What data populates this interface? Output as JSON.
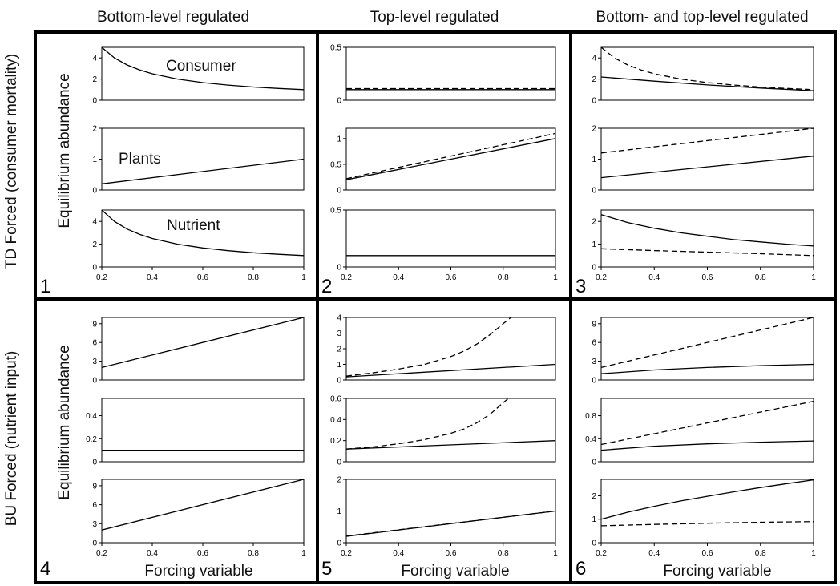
{
  "column_titles": [
    "Bottom-level regulated",
    "Top-level regulated",
    "Bottom- and top-level regulated"
  ],
  "row_titles": [
    "TD Forced (consumer mortality)",
    "BU Forced (nutrient input)"
  ],
  "ylabel": "Equilibrium abundance",
  "xlabel": "Forcing variable",
  "panel_numbers": [
    "1",
    "2",
    "3",
    "4",
    "5",
    "6"
  ],
  "annotations": {
    "consumer": "Consumer",
    "plants": "Plants",
    "nutrient": "Nutrient"
  },
  "chart_data": [
    {
      "type": "line",
      "panel": "1",
      "subplots": [
        {
          "ylim": [
            0,
            5
          ],
          "yticks": [
            0,
            2,
            4
          ],
          "xlim": [
            0.2,
            1
          ],
          "xticks": [],
          "annotation": "Consumer",
          "series": [
            {
              "style": "solid",
              "x": [
                0.2,
                0.25,
                0.3,
                0.35,
                0.4,
                0.5,
                0.6,
                0.7,
                0.8,
                0.9,
                1.0
              ],
              "y": [
                5.0,
                4.0,
                3.33,
                2.86,
                2.5,
                2.0,
                1.67,
                1.43,
                1.25,
                1.11,
                1.0
              ]
            }
          ]
        },
        {
          "ylim": [
            0,
            2
          ],
          "yticks": [
            0,
            1,
            2
          ],
          "xlim": [
            0.2,
            1
          ],
          "xticks": [],
          "annotation": "Plants",
          "series": [
            {
              "style": "solid",
              "x": [
                0.2,
                1.0
              ],
              "y": [
                0.2,
                1.0
              ]
            }
          ]
        },
        {
          "ylim": [
            0,
            5
          ],
          "yticks": [
            0,
            2,
            4
          ],
          "xlim": [
            0.2,
            1
          ],
          "xticks": [
            0.2,
            0.4,
            0.6,
            0.8,
            1
          ],
          "annotation": "Nutrient",
          "series": [
            {
              "style": "solid",
              "x": [
                0.2,
                0.25,
                0.3,
                0.35,
                0.4,
                0.5,
                0.6,
                0.7,
                0.8,
                0.9,
                1.0
              ],
              "y": [
                5.0,
                4.0,
                3.33,
                2.86,
                2.5,
                2.0,
                1.67,
                1.43,
                1.25,
                1.11,
                1.0
              ]
            }
          ]
        }
      ]
    },
    {
      "type": "line",
      "panel": "2",
      "subplots": [
        {
          "ylim": [
            0,
            0.5
          ],
          "yticks": [
            0,
            0.5
          ],
          "xlim": [
            0.2,
            1
          ],
          "xticks": [],
          "series": [
            {
              "style": "solid",
              "x": [
                0.2,
                1.0
              ],
              "y": [
                0.1,
                0.1
              ]
            },
            {
              "style": "dashed",
              "x": [
                0.2,
                1.0
              ],
              "y": [
                0.11,
                0.11
              ]
            }
          ]
        },
        {
          "ylim": [
            0,
            1.2
          ],
          "yticks": [
            0,
            0.5,
            1
          ],
          "xlim": [
            0.2,
            1
          ],
          "xticks": [],
          "series": [
            {
              "style": "solid",
              "x": [
                0.2,
                1.0
              ],
              "y": [
                0.2,
                1.0
              ]
            },
            {
              "style": "dashed",
              "x": [
                0.2,
                1.0
              ],
              "y": [
                0.22,
                1.1
              ]
            }
          ]
        },
        {
          "ylim": [
            0,
            0.5
          ],
          "yticks": [
            0,
            0.5
          ],
          "xlim": [
            0.2,
            1
          ],
          "xticks": [
            0.2,
            0.4,
            0.6,
            0.8,
            1
          ],
          "series": [
            {
              "style": "solid",
              "x": [
                0.2,
                1.0
              ],
              "y": [
                0.1,
                0.1
              ]
            }
          ]
        }
      ]
    },
    {
      "type": "line",
      "panel": "3",
      "subplots": [
        {
          "ylim": [
            0,
            5
          ],
          "yticks": [
            0,
            2,
            4
          ],
          "xlim": [
            0.2,
            1
          ],
          "xticks": [],
          "series": [
            {
              "style": "solid",
              "x": [
                0.2,
                0.4,
                0.6,
                0.8,
                1.0
              ],
              "y": [
                2.2,
                1.8,
                1.45,
                1.15,
                0.9
              ]
            },
            {
              "style": "dashed",
              "x": [
                0.2,
                0.25,
                0.3,
                0.35,
                0.4,
                0.5,
                0.6,
                0.7,
                0.8,
                0.9,
                1.0
              ],
              "y": [
                5.0,
                4.0,
                3.33,
                2.86,
                2.5,
                2.0,
                1.67,
                1.43,
                1.25,
                1.11,
                1.0
              ]
            }
          ]
        },
        {
          "ylim": [
            0,
            2
          ],
          "yticks": [
            0,
            1,
            2
          ],
          "xlim": [
            0.2,
            1
          ],
          "xticks": [],
          "series": [
            {
              "style": "solid",
              "x": [
                0.2,
                1.0
              ],
              "y": [
                0.4,
                1.1
              ]
            },
            {
              "style": "dashed",
              "x": [
                0.2,
                1.0
              ],
              "y": [
                1.2,
                2.0
              ]
            }
          ]
        },
        {
          "ylim": [
            0,
            2.5
          ],
          "yticks": [
            0,
            1,
            2
          ],
          "xlim": [
            0.2,
            1
          ],
          "xticks": [
            0.2,
            0.4,
            0.6,
            0.8,
            1
          ],
          "series": [
            {
              "style": "solid",
              "x": [
                0.2,
                0.3,
                0.4,
                0.5,
                0.6,
                0.7,
                0.8,
                0.9,
                1.0
              ],
              "y": [
                2.3,
                1.95,
                1.7,
                1.5,
                1.35,
                1.2,
                1.1,
                1.0,
                0.92
              ]
            },
            {
              "style": "dashed",
              "x": [
                0.2,
                0.4,
                0.6,
                0.8,
                1.0
              ],
              "y": [
                0.8,
                0.72,
                0.65,
                0.58,
                0.5
              ]
            }
          ]
        }
      ]
    },
    {
      "type": "line",
      "panel": "4",
      "subplots": [
        {
          "ylim": [
            0,
            10
          ],
          "yticks": [
            0,
            3,
            6,
            9
          ],
          "xlim": [
            0.2,
            1
          ],
          "xticks": [],
          "series": [
            {
              "style": "solid",
              "x": [
                0.2,
                1.0
              ],
              "y": [
                2.0,
                10.0
              ]
            }
          ]
        },
        {
          "ylim": [
            0,
            0.55
          ],
          "yticks": [
            0,
            0.2,
            0.4
          ],
          "xlim": [
            0.2,
            1
          ],
          "xticks": [],
          "series": [
            {
              "style": "solid",
              "x": [
                0.2,
                1.0
              ],
              "y": [
                0.1,
                0.1
              ]
            }
          ]
        },
        {
          "ylim": [
            0,
            10
          ],
          "yticks": [
            0,
            3,
            6,
            9
          ],
          "xlim": [
            0.2,
            1
          ],
          "xticks": [
            0.2,
            0.4,
            0.6,
            0.8,
            1
          ],
          "series": [
            {
              "style": "solid",
              "x": [
                0.2,
                1.0
              ],
              "y": [
                2.0,
                10.0
              ]
            }
          ]
        }
      ]
    },
    {
      "type": "line",
      "panel": "5",
      "subplots": [
        {
          "ylim": [
            0,
            4
          ],
          "yticks": [
            0,
            1,
            2,
            3,
            4
          ],
          "xlim": [
            0.2,
            1
          ],
          "xticks": [],
          "series": [
            {
              "style": "solid",
              "x": [
                0.2,
                1.0
              ],
              "y": [
                0.2,
                1.0
              ]
            },
            {
              "style": "dashed",
              "x": [
                0.2,
                0.3,
                0.4,
                0.5,
                0.6,
                0.65,
                0.7,
                0.75,
                0.8,
                0.83
              ],
              "y": [
                0.25,
                0.45,
                0.7,
                1.0,
                1.5,
                1.85,
                2.3,
                2.9,
                3.6,
                4.0
              ]
            }
          ]
        },
        {
          "ylim": [
            0,
            0.6
          ],
          "yticks": [
            0,
            0.2,
            0.4,
            0.6
          ],
          "xlim": [
            0.2,
            1
          ],
          "xticks": [],
          "series": [
            {
              "style": "solid",
              "x": [
                0.2,
                1.0
              ],
              "y": [
                0.12,
                0.2
              ]
            },
            {
              "style": "dashed",
              "x": [
                0.2,
                0.3,
                0.4,
                0.5,
                0.6,
                0.65,
                0.7,
                0.75,
                0.8,
                0.82
              ],
              "y": [
                0.12,
                0.14,
                0.17,
                0.21,
                0.27,
                0.31,
                0.37,
                0.45,
                0.56,
                0.6
              ]
            }
          ]
        },
        {
          "ylim": [
            0,
            2
          ],
          "yticks": [
            0,
            1,
            2
          ],
          "xlim": [
            0.2,
            1
          ],
          "xticks": [
            0.2,
            0.4,
            0.6,
            0.8,
            1
          ],
          "series": [
            {
              "style": "solid",
              "x": [
                0.2,
                1.0
              ],
              "y": [
                0.2,
                1.0
              ]
            },
            {
              "style": "dashed",
              "x": [
                0.2,
                1.0
              ],
              "y": [
                0.21,
                1.0
              ]
            }
          ]
        }
      ]
    },
    {
      "type": "line",
      "panel": "6",
      "subplots": [
        {
          "ylim": [
            0,
            10
          ],
          "yticks": [
            0,
            3,
            6,
            9
          ],
          "xlim": [
            0.2,
            1
          ],
          "xticks": [],
          "series": [
            {
              "style": "solid",
              "x": [
                0.2,
                0.4,
                0.6,
                0.8,
                1.0
              ],
              "y": [
                1.0,
                1.6,
                2.0,
                2.3,
                2.5
              ]
            },
            {
              "style": "dashed",
              "x": [
                0.2,
                1.0
              ],
              "y": [
                2.0,
                10.0
              ]
            }
          ]
        },
        {
          "ylim": [
            0,
            1.1
          ],
          "yticks": [
            0,
            0.4,
            0.8
          ],
          "xlim": [
            0.2,
            1
          ],
          "xticks": [],
          "series": [
            {
              "style": "solid",
              "x": [
                0.2,
                0.4,
                0.6,
                0.8,
                1.0
              ],
              "y": [
                0.2,
                0.27,
                0.31,
                0.34,
                0.36
              ]
            },
            {
              "style": "dashed",
              "x": [
                0.2,
                1.0
              ],
              "y": [
                0.3,
                1.05
              ]
            }
          ]
        },
        {
          "ylim": [
            0,
            2.7
          ],
          "yticks": [
            0,
            1,
            2
          ],
          "xlim": [
            0.2,
            1
          ],
          "xticks": [
            0.2,
            0.4,
            0.6,
            0.8,
            1
          ],
          "series": [
            {
              "style": "solid",
              "x": [
                0.2,
                0.3,
                0.4,
                0.5,
                0.6,
                0.7,
                0.8,
                0.9,
                1.0
              ],
              "y": [
                1.0,
                1.3,
                1.55,
                1.78,
                1.98,
                2.17,
                2.35,
                2.52,
                2.68
              ]
            },
            {
              "style": "dashed",
              "x": [
                0.2,
                0.4,
                0.6,
                0.8,
                1.0
              ],
              "y": [
                0.72,
                0.78,
                0.83,
                0.87,
                0.9
              ]
            }
          ]
        }
      ]
    }
  ]
}
